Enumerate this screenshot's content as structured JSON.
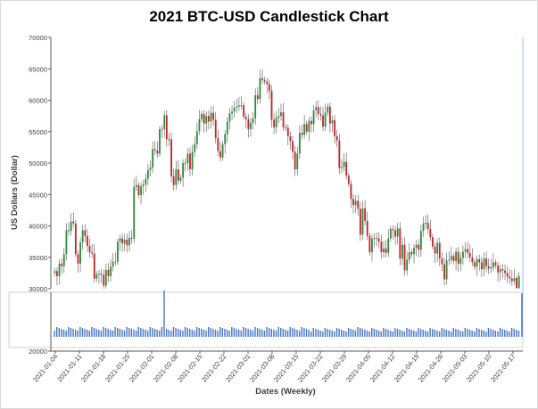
{
  "chart_data": {
    "type": "candlestick",
    "title": "2021 BTC-USD Candlestick Chart",
    "xlabel": "Dates (Weekly)",
    "ylabel": "US Dollars (Dollar)",
    "ylim": [
      20000,
      70000
    ],
    "yticks": [
      20000,
      30000,
      35000,
      40000,
      45000,
      50000,
      55000,
      60000,
      65000,
      70000
    ],
    "x_tick_labels": [
      "2021-01-04",
      "2021-01-11",
      "2021-01-18",
      "2021-01-25",
      "2021-02-01",
      "2021-02-08",
      "2021-02-15",
      "2021-02-22",
      "2021-03-01",
      "2021-03-08",
      "2021-03-15",
      "2021-03-22",
      "2021-03-29",
      "2021-04-05",
      "2021-04-12",
      "2021-04-19",
      "2021-04-26",
      "2021-05-03",
      "2021-05-10",
      "2021-05-17"
    ],
    "colors": {
      "up": "#2e8b3e",
      "down": "#c0262d",
      "volume": "#4472c4"
    },
    "close": [
      32800,
      32000,
      34000,
      33600,
      35500,
      39300,
      39200,
      40700,
      40400,
      35500,
      34000,
      37400,
      39300,
      38400,
      36800,
      35800,
      35600,
      31600,
      32300,
      32400,
      32200,
      30500,
      33000,
      32000,
      33500,
      34300,
      34300,
      37500,
      38000,
      37200,
      37800,
      36900,
      38100,
      38000,
      46200,
      46500,
      44900,
      46300,
      46600,
      47500,
      48900,
      49300,
      52200,
      52000,
      51500,
      55400,
      55400,
      57600,
      53800,
      53800,
      47900,
      46500,
      49000,
      47200,
      47700,
      50000,
      50000,
      51500,
      49000,
      51800,
      53000,
      55100,
      57000,
      57800,
      56300,
      57500,
      56600,
      58000,
      56900,
      54000,
      51900,
      50900,
      53000,
      54600,
      56600,
      57900,
      58200,
      58800,
      59000,
      59200,
      59200,
      57400,
      57000,
      55400,
      56400,
      57100,
      60800,
      60200,
      63500,
      63200,
      63000,
      62600,
      61500,
      56900,
      55700,
      57200,
      57500,
      58100,
      55700,
      55600,
      54300,
      53500,
      51800,
      49000,
      51500,
      54800,
      54500,
      56200,
      55000,
      56700,
      56200,
      58400,
      58900,
      57800,
      57600,
      55800,
      58000,
      59000,
      56300,
      56800,
      54300,
      53600,
      49200,
      49400,
      50200,
      48000,
      46700,
      44300,
      43300,
      44000,
      42700,
      38600,
      42800,
      40800,
      38400,
      35800,
      38000,
      38100,
      38000,
      37500,
      35800,
      36400,
      35700,
      38000,
      39500,
      39300,
      38300,
      39600,
      34800,
      37000,
      32900,
      34600,
      35800,
      35500,
      36500,
      37000,
      36200,
      39200,
      40400,
      40500,
      39500,
      38200,
      36700,
      35600,
      37300,
      34800,
      33900,
      31500,
      34500,
      34600,
      35200,
      34400,
      35900,
      34000,
      34900,
      35900,
      36300,
      35700,
      35000,
      34200,
      33500,
      34700,
      34200,
      33100,
      34800,
      33600,
      33200,
      33400,
      34200,
      33700,
      32600,
      33100,
      32900,
      32500,
      31900,
      31600,
      31200,
      31700,
      30100,
      32000
    ]
  }
}
